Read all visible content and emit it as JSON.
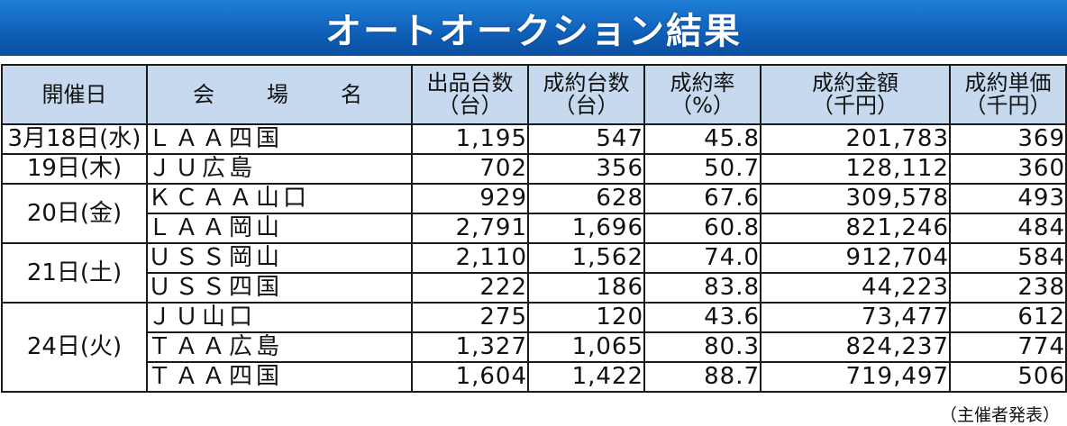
{
  "title": "オートオークション結果",
  "headers": {
    "date": "開催日",
    "venue": [
      "会",
      "場",
      "名"
    ],
    "listed": {
      "main": "出品台数",
      "unit": "（台）"
    },
    "sold": {
      "main": "成約台数",
      "unit": "（台）"
    },
    "rate": {
      "main": "成約率",
      "unit": "（%）"
    },
    "amount": {
      "main": "成約金額",
      "unit": "（千円）"
    },
    "unit_price": {
      "main": "成約単価",
      "unit": "（千円）"
    }
  },
  "rows": [
    {
      "date": "3月18日(水)",
      "venue": "ＬＡＡ四国",
      "listed": "1,195",
      "sold": "547",
      "rate": "45.8",
      "amount": "201,783",
      "unit_price": "369"
    },
    {
      "date": "19日(木)",
      "venue": "ＪＵ広島",
      "listed": "702",
      "sold": "356",
      "rate": "50.7",
      "amount": "128,112",
      "unit_price": "360"
    },
    {
      "date": "20日(金)",
      "venue": "ＫＣＡＡ山口",
      "listed": "929",
      "sold": "628",
      "rate": "67.6",
      "amount": "309,578",
      "unit_price": "493"
    },
    {
      "date": "",
      "venue": "ＬＡＡ岡山",
      "listed": "2,791",
      "sold": "1,696",
      "rate": "60.8",
      "amount": "821,246",
      "unit_price": "484"
    },
    {
      "date": "21日(土)",
      "venue": "ＵＳＳ岡山",
      "listed": "2,110",
      "sold": "1,562",
      "rate": "74.0",
      "amount": "912,704",
      "unit_price": "584"
    },
    {
      "date": "",
      "venue": "ＵＳＳ四国",
      "listed": "222",
      "sold": "186",
      "rate": "83.8",
      "amount": "44,223",
      "unit_price": "238"
    },
    {
      "date": "24日(火)",
      "venue": "ＪＵ山口",
      "listed": "275",
      "sold": "120",
      "rate": "43.6",
      "amount": "73,477",
      "unit_price": "612"
    },
    {
      "date": "",
      "venue": "ＴＡＡ広島",
      "listed": "1,327",
      "sold": "1,065",
      "rate": "80.3",
      "amount": "824,237",
      "unit_price": "774"
    },
    {
      "date": "",
      "venue": "ＴＡＡ四国",
      "listed": "1,604",
      "sold": "1,422",
      "rate": "88.7",
      "amount": "719,497",
      "unit_price": "506"
    }
  ],
  "footnote": "（主催者発表）"
}
